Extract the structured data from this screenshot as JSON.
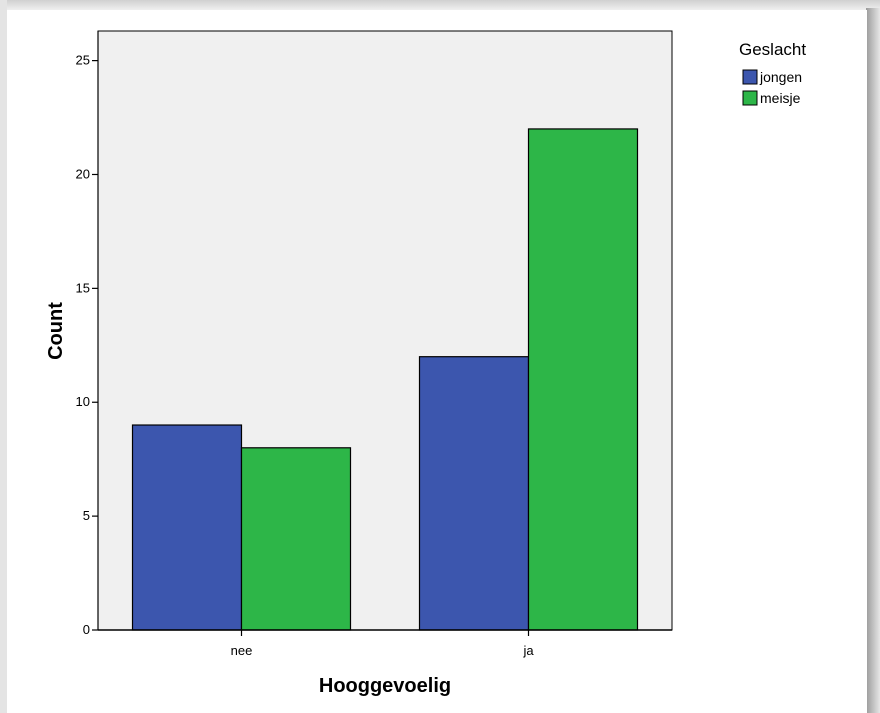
{
  "chart_data": {
    "type": "bar",
    "title": "",
    "xlabel": "Hooggevoelig",
    "ylabel": "Count",
    "categories": [
      "nee",
      "ja"
    ],
    "series": [
      {
        "name": "jongen",
        "values": [
          9,
          12
        ],
        "color": "#3c56ae"
      },
      {
        "name": "meisje",
        "values": [
          8,
          22
        ],
        "color": "#2db648"
      }
    ],
    "ylim": [
      0,
      26.3
    ],
    "yticks": [
      0,
      5,
      10,
      15,
      20,
      25
    ],
    "grid": false,
    "legend_title": "Geslacht",
    "legend_position": "top-right",
    "plot_background": "#f0f0f0"
  }
}
